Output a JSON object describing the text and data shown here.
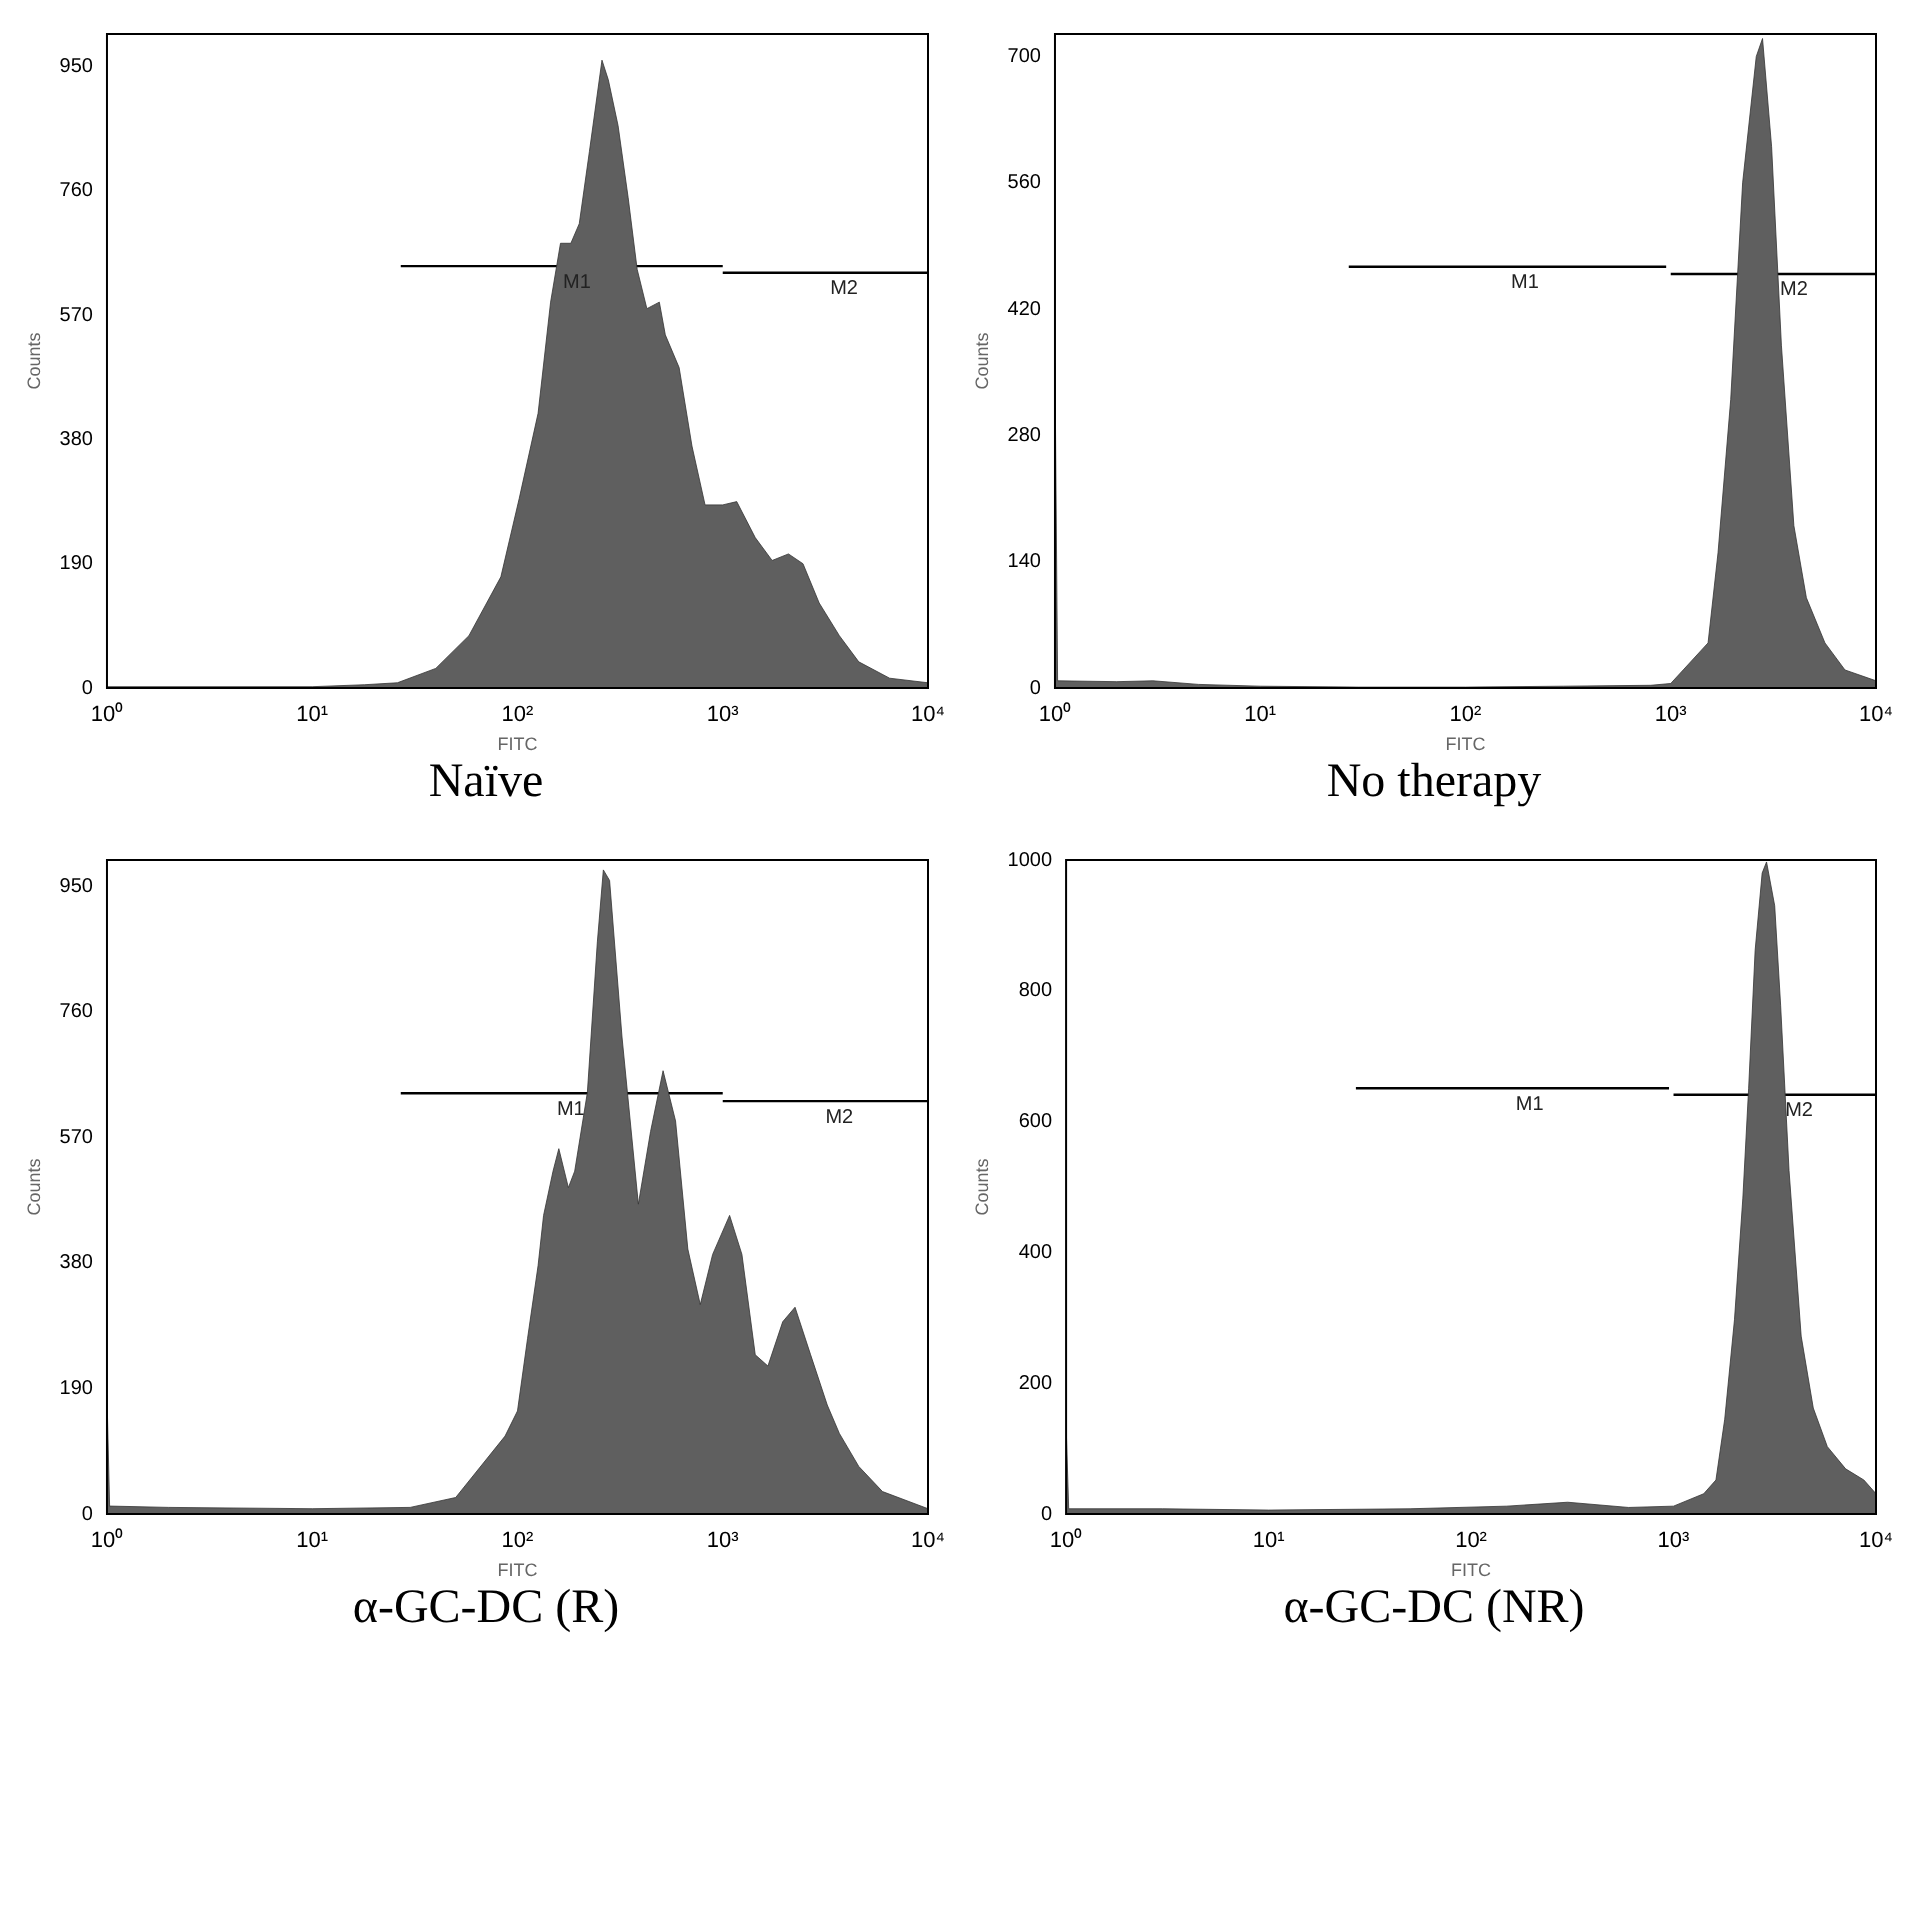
{
  "chart_data": [
    {
      "type": "area",
      "title": "Naïve",
      "xlabel": "FITC",
      "ylabel": "Counts",
      "log": "x",
      "xlim": [
        1,
        10000
      ],
      "ylim": [
        0,
        1000
      ],
      "xticks": [
        {
          "value": 1,
          "label": "10⁰"
        },
        {
          "value": 10,
          "label": "10¹"
        },
        {
          "value": 100,
          "label": "10²"
        },
        {
          "value": 1000,
          "label": "10³"
        },
        {
          "value": 10000,
          "label": "10⁴"
        }
      ],
      "yticks": [
        0,
        190,
        380,
        570,
        760,
        950
      ],
      "series": [
        {
          "type": "area",
          "color": "#5f5f5f",
          "x": [
            1,
            10,
            18,
            26,
            40,
            58,
            83,
            102,
            126,
            145,
            162,
            182,
            200,
            224,
            258,
            277,
            309,
            346,
            383,
            427,
            491,
            525,
            613,
            708,
            820,
            1000,
            1170,
            1440,
            1740,
            2090,
            2460,
            2950,
            3700,
            4600,
            6500,
            10000
          ],
          "values": [
            2,
            2,
            5,
            8,
            30,
            80,
            170,
            290,
            420,
            590,
            680,
            680,
            710,
            820,
            960,
            930,
            860,
            750,
            640,
            580,
            590,
            540,
            490,
            370,
            280,
            280,
            285,
            230,
            195,
            205,
            190,
            130,
            80,
            40,
            15,
            8
          ]
        },
        {
          "type": "line",
          "color": "#000000",
          "x": [
            27,
            1000
          ],
          "values": [
            645,
            645
          ]
        },
        {
          "type": "line",
          "color": "#000000",
          "x": [
            1000,
            10000
          ],
          "values": [
            635,
            635
          ]
        }
      ],
      "annotations": [
        {
          "text": "M1",
          "x": 195,
          "y": 645
        },
        {
          "text": "M2",
          "x": 3900,
          "y": 635
        }
      ]
    },
    {
      "type": "area",
      "title": "No therapy",
      "xlabel": "FITC",
      "ylabel": "Counts",
      "log": "x",
      "xlim": [
        1,
        10000
      ],
      "ylim": [
        0,
        725
      ],
      "xticks": [
        {
          "value": 1,
          "label": "10⁰"
        },
        {
          "value": 10,
          "label": "10¹"
        },
        {
          "value": 100,
          "label": "10²"
        },
        {
          "value": 1000,
          "label": "10³"
        },
        {
          "value": 10000,
          "label": "10⁴"
        }
      ],
      "yticks": [
        0,
        140,
        280,
        420,
        560,
        700
      ],
      "series": [
        {
          "type": "area",
          "color": "#5f5f5f",
          "x": [
            1,
            1.03,
            2,
            3,
            5,
            10,
            30,
            100,
            300,
            800,
            1000,
            1150,
            1520,
            1700,
            1960,
            2240,
            2610,
            2800,
            3100,
            3460,
            3980,
            4580,
            5640,
            7060,
            10000
          ],
          "values": [
            360,
            8,
            7,
            8,
            4,
            2,
            1,
            1,
            2,
            3,
            5,
            20,
            50,
            150,
            320,
            560,
            700,
            720,
            600,
            380,
            180,
            100,
            50,
            20,
            8
          ]
        },
        {
          "type": "line",
          "color": "#000000",
          "x": [
            27,
            950
          ],
          "values": [
            467,
            467
          ]
        },
        {
          "type": "line",
          "color": "#000000",
          "x": [
            1000,
            10000
          ],
          "values": [
            459,
            459
          ]
        }
      ],
      "annotations": [
        {
          "text": "M1",
          "x": 195,
          "y": 467
        },
        {
          "text": "M2",
          "x": 3980,
          "y": 459
        }
      ]
    },
    {
      "type": "area",
      "title": "α-GC-DC (R)",
      "xlabel": "FITC",
      "ylabel": "Counts",
      "log": "x",
      "xlim": [
        1,
        10000
      ],
      "ylim": [
        0,
        990
      ],
      "xticks": [
        {
          "value": 1,
          "label": "10⁰"
        },
        {
          "value": 10,
          "label": "10¹"
        },
        {
          "value": 100,
          "label": "10²"
        },
        {
          "value": 1000,
          "label": "10³"
        },
        {
          "value": 10000,
          "label": "10⁴"
        }
      ],
      "yticks": [
        0,
        190,
        380,
        570,
        760,
        950
      ],
      "series": [
        {
          "type": "area",
          "color": "#5f5f5f",
          "x": [
            1,
            1.03,
            2,
            10,
            30,
            50,
            87,
            100,
            112,
            126,
            134,
            149,
            159,
            177,
            190,
            219,
            245,
            262,
            281,
            323,
            388,
            445,
            512,
            589,
            676,
            777,
            893,
            1080,
            1240,
            1440,
            1660,
            1960,
            2250,
            2680,
            3230,
            3700,
            4600,
            6000,
            10000
          ],
          "values": [
            180,
            12,
            10,
            8,
            10,
            25,
            118,
            156,
            266,
            376,
            452,
            519,
            553,
            494,
            519,
            638,
            866,
            975,
            959,
            722,
            469,
            579,
            671,
            595,
            401,
            317,
            393,
            452,
            393,
            241,
            224,
            291,
            313,
            241,
            165,
            122,
            72,
            34,
            8
          ]
        },
        {
          "type": "line",
          "color": "#000000",
          "x": [
            27,
            1000
          ],
          "values": [
            637,
            637
          ]
        },
        {
          "type": "line",
          "color": "#000000",
          "x": [
            1000,
            10000
          ],
          "values": [
            625,
            625
          ]
        }
      ],
      "annotations": [
        {
          "text": "M1",
          "x": 182,
          "y": 637
        },
        {
          "text": "M2",
          "x": 3700,
          "y": 625
        }
      ]
    },
    {
      "type": "area",
      "title": "α-GC-DC (NR)",
      "xlabel": "FITC",
      "ylabel": "Counts",
      "log": "x",
      "xlim": [
        1,
        10000
      ],
      "ylim": [
        0,
        1000
      ],
      "xticks": [
        {
          "value": 1,
          "label": "10⁰"
        },
        {
          "value": 10,
          "label": "10¹"
        },
        {
          "value": 100,
          "label": "10²"
        },
        {
          "value": 1000,
          "label": "10³"
        },
        {
          "value": 10000,
          "label": "10⁴"
        }
      ],
      "yticks": [
        0,
        200,
        400,
        600,
        800,
        1000
      ],
      "series": [
        {
          "type": "area",
          "color": "#5f5f5f",
          "x": [
            1,
            1.03,
            3,
            10,
            50,
            150,
            300,
            600,
            1000,
            1410,
            1620,
            1790,
            2000,
            2200,
            2350,
            2530,
            2740,
            2880,
            3160,
            3380,
            3720,
            4270,
            4900,
            5750,
            7080,
            8710,
            10000
          ],
          "values": [
            137,
            8,
            8,
            6,
            8,
            12,
            18,
            10,
            12,
            31,
            52,
            145,
            297,
            483,
            651,
            862,
            980,
            997,
            930,
            778,
            525,
            272,
            162,
            103,
            69,
            52,
            31
          ]
        },
        {
          "type": "line",
          "color": "#000000",
          "x": [
            27,
            950
          ],
          "values": [
            651,
            651
          ]
        },
        {
          "type": "line",
          "color": "#000000",
          "x": [
            1000,
            10000
          ],
          "values": [
            641,
            641
          ]
        }
      ],
      "annotations": [
        {
          "text": "M1",
          "x": 195,
          "y": 651
        },
        {
          "text": "M2",
          "x": 4170,
          "y": 641
        }
      ]
    }
  ]
}
